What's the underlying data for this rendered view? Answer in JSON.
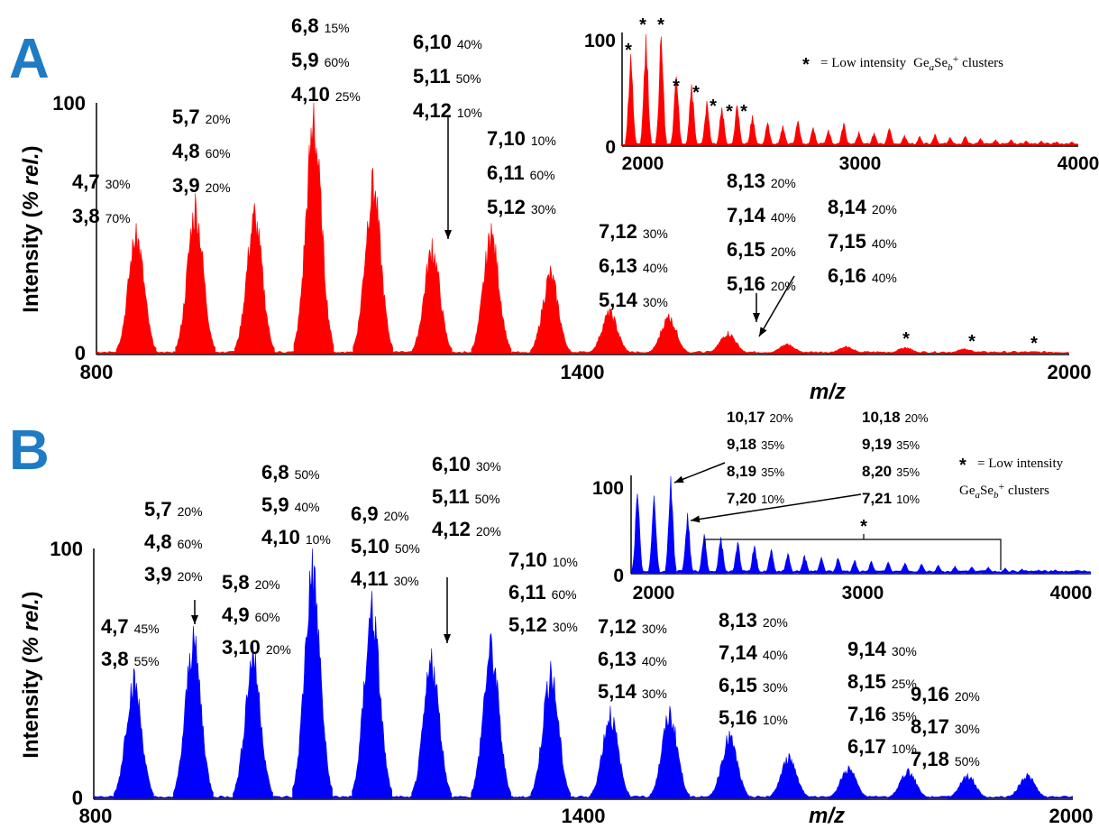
{
  "chart_data": [
    {
      "panel": "A",
      "type": "area",
      "color": "#ff0000",
      "xlabel": "m/z",
      "ylabel_main": "Intensity (",
      "ylabel_italic": "% rel.",
      "ylabel_close": ")",
      "xlim": [
        800,
        2000
      ],
      "ylim": [
        0,
        100
      ],
      "x_ticks": [
        "800",
        "1400",
        "2000"
      ],
      "y_ticks": [
        "0",
        "100"
      ],
      "peaks": [
        {
          "x": 849,
          "y": 52
        },
        {
          "x": 922,
          "y": 64
        },
        {
          "x": 995,
          "y": 60
        },
        {
          "x": 1068,
          "y": 100
        },
        {
          "x": 1141,
          "y": 74
        },
        {
          "x": 1214,
          "y": 46
        },
        {
          "x": 1287,
          "y": 52
        },
        {
          "x": 1360,
          "y": 35
        },
        {
          "x": 1433,
          "y": 18
        },
        {
          "x": 1506,
          "y": 16
        },
        {
          "x": 1579,
          "y": 9
        },
        {
          "x": 1652,
          "y": 4
        },
        {
          "x": 1725,
          "y": 3
        },
        {
          "x": 1798,
          "y": 2.5
        },
        {
          "x": 1871,
          "y": 2
        }
      ],
      "annotations": [
        {
          "lines": [
            [
              "4,7",
              "30%"
            ],
            [
              "3,8",
              "70%"
            ]
          ]
        },
        {
          "lines": [
            [
              "5,7",
              "20%"
            ],
            [
              "4,8",
              "60%"
            ],
            [
              "3,9",
              "20%"
            ]
          ]
        },
        {
          "lines": [
            [
              "6,8",
              "15%"
            ],
            [
              "5,9",
              "60%"
            ],
            [
              "4,10",
              "25%"
            ]
          ]
        },
        {
          "lines": [
            [
              "6,10",
              "40%"
            ],
            [
              "5,11",
              "50%"
            ],
            [
              "4,12",
              "10%"
            ]
          ]
        },
        {
          "lines": [
            [
              "7,10",
              "10%"
            ],
            [
              "6,11",
              "60%"
            ],
            [
              "5,12",
              "30%"
            ]
          ]
        },
        {
          "lines": [
            [
              "7,12",
              "30%"
            ],
            [
              "6,13",
              "40%"
            ],
            [
              "5,14",
              "30%"
            ]
          ]
        },
        {
          "lines": [
            [
              "8,13",
              "20%"
            ],
            [
              "7,14",
              "40%"
            ],
            [
              "6,15",
              "20%"
            ],
            [
              "5,16",
              "20%"
            ]
          ]
        },
        {
          "lines": [
            [
              "8,14",
              "20%"
            ],
            [
              "7,15",
              "40%"
            ],
            [
              "6,16",
              "40%"
            ]
          ]
        }
      ],
      "stars": [
        "*",
        "*",
        "*"
      ],
      "inset": {
        "xlim": [
          1900,
          4000
        ],
        "ylim": [
          0,
          100
        ],
        "x_ticks": [
          "2000",
          "3000",
          "4000"
        ],
        "y_ticks": [
          "0",
          "100"
        ],
        "legend": "= Low intensity",
        "legend_formula": [
          "Ge",
          "a",
          "Se",
          "b",
          "+",
          " clusters"
        ],
        "peaks": [
          {
            "x": 1940,
            "y": 82
          },
          {
            "x": 2010,
            "y": 100
          },
          {
            "x": 2080,
            "y": 98
          },
          {
            "x": 2150,
            "y": 62
          },
          {
            "x": 2220,
            "y": 55
          },
          {
            "x": 2290,
            "y": 40
          },
          {
            "x": 2360,
            "y": 34
          },
          {
            "x": 2430,
            "y": 36
          },
          {
            "x": 2500,
            "y": 27
          },
          {
            "x": 2570,
            "y": 20
          },
          {
            "x": 2640,
            "y": 18
          },
          {
            "x": 2710,
            "y": 22
          },
          {
            "x": 2780,
            "y": 16
          },
          {
            "x": 2850,
            "y": 14
          },
          {
            "x": 2920,
            "y": 20
          },
          {
            "x": 2990,
            "y": 12
          },
          {
            "x": 3060,
            "y": 11
          },
          {
            "x": 3130,
            "y": 15
          },
          {
            "x": 3200,
            "y": 9
          },
          {
            "x": 3270,
            "y": 8
          },
          {
            "x": 3340,
            "y": 10
          },
          {
            "x": 3410,
            "y": 7
          },
          {
            "x": 3480,
            "y": 8
          },
          {
            "x": 3550,
            "y": 6
          },
          {
            "x": 3620,
            "y": 5
          },
          {
            "x": 3690,
            "y": 5
          },
          {
            "x": 3760,
            "y": 4
          },
          {
            "x": 3830,
            "y": 4
          },
          {
            "x": 3900,
            "y": 3
          },
          {
            "x": 3970,
            "y": 3
          }
        ],
        "stars": [
          "*",
          "*",
          "*",
          "*",
          "*",
          "*",
          "*",
          "*",
          "*"
        ]
      }
    },
    {
      "panel": "B",
      "type": "area",
      "color": "#0000ff",
      "xlabel": "m/z",
      "ylabel_main": "Intensity (",
      "ylabel_italic": "% rel.",
      "ylabel_close": ")",
      "xlim": [
        800,
        2000
      ],
      "ylim": [
        0,
        100
      ],
      "x_ticks": [
        "800",
        "1400",
        "2000"
      ],
      "y_ticks": [
        "0",
        "100"
      ],
      "peaks": [
        {
          "x": 849,
          "y": 52
        },
        {
          "x": 922,
          "y": 69
        },
        {
          "x": 995,
          "y": 62
        },
        {
          "x": 1068,
          "y": 100
        },
        {
          "x": 1141,
          "y": 83
        },
        {
          "x": 1214,
          "y": 60
        },
        {
          "x": 1287,
          "y": 66
        },
        {
          "x": 1360,
          "y": 55
        },
        {
          "x": 1433,
          "y": 37
        },
        {
          "x": 1506,
          "y": 37
        },
        {
          "x": 1579,
          "y": 27
        },
        {
          "x": 1652,
          "y": 18
        },
        {
          "x": 1725,
          "y": 13
        },
        {
          "x": 1798,
          "y": 12
        },
        {
          "x": 1871,
          "y": 10
        },
        {
          "x": 1944,
          "y": 10
        }
      ],
      "annotations": [
        {
          "lines": [
            [
              "4,7",
              "45%"
            ],
            [
              "3,8",
              "55%"
            ]
          ]
        },
        {
          "lines": [
            [
              "5,7",
              "20%"
            ],
            [
              "4,8",
              "60%"
            ],
            [
              "3,9",
              "20%"
            ]
          ]
        },
        {
          "lines": [
            [
              "5,8",
              "20%"
            ],
            [
              "4,9",
              "60%"
            ],
            [
              "3,10",
              "20%"
            ]
          ]
        },
        {
          "lines": [
            [
              "6,8",
              "50%"
            ],
            [
              "5,9",
              "40%"
            ],
            [
              "4,10",
              "10%"
            ]
          ]
        },
        {
          "lines": [
            [
              "6,9",
              "20%"
            ],
            [
              "5,10",
              "50%"
            ],
            [
              "4,11",
              "30%"
            ]
          ]
        },
        {
          "lines": [
            [
              "6,10",
              "30%"
            ],
            [
              "5,11",
              "50%"
            ],
            [
              "4,12",
              "20%"
            ]
          ]
        },
        {
          "lines": [
            [
              "7,10",
              "10%"
            ],
            [
              "6,11",
              "60%"
            ],
            [
              "5,12",
              "30%"
            ]
          ]
        },
        {
          "lines": [
            [
              "7,12",
              "30%"
            ],
            [
              "6,13",
              "40%"
            ],
            [
              "5,14",
              "30%"
            ]
          ]
        },
        {
          "lines": [
            [
              "8,13",
              "20%"
            ],
            [
              "7,14",
              "40%"
            ],
            [
              "6,15",
              "30%"
            ],
            [
              "5,16",
              "10%"
            ]
          ]
        },
        {
          "lines": [
            [
              "9,14",
              "30%"
            ],
            [
              "8,15",
              "25%"
            ],
            [
              "7,16",
              "35%"
            ],
            [
              "6,17",
              "10%"
            ]
          ]
        },
        {
          "lines": [
            [
              "9,16",
              "20%"
            ],
            [
              "8,17",
              "30%"
            ],
            [
              "7,18",
              "50%"
            ]
          ]
        }
      ],
      "inset": {
        "xlim": [
          1900,
          4100
        ],
        "ylim": [
          0,
          100
        ],
        "x_ticks": [
          "2000",
          "3000",
          "4000"
        ],
        "y_ticks": [
          "0",
          "100"
        ],
        "legend": "= Low intensity",
        "legend_formula": [
          "Ge",
          "a",
          "Se",
          "b",
          "+",
          " clusters"
        ],
        "peaks": [
          {
            "x": 1930,
            "y": 82
          },
          {
            "x": 2010,
            "y": 80
          },
          {
            "x": 2090,
            "y": 100
          },
          {
            "x": 2170,
            "y": 62
          },
          {
            "x": 2250,
            "y": 40
          },
          {
            "x": 2330,
            "y": 37
          },
          {
            "x": 2410,
            "y": 32
          },
          {
            "x": 2490,
            "y": 28
          },
          {
            "x": 2570,
            "y": 24
          },
          {
            "x": 2650,
            "y": 20
          },
          {
            "x": 2730,
            "y": 18
          },
          {
            "x": 2810,
            "y": 16
          },
          {
            "x": 2890,
            "y": 15
          },
          {
            "x": 2970,
            "y": 13
          },
          {
            "x": 3050,
            "y": 12
          },
          {
            "x": 3130,
            "y": 11
          },
          {
            "x": 3210,
            "y": 10
          },
          {
            "x": 3290,
            "y": 9
          },
          {
            "x": 3370,
            "y": 8
          },
          {
            "x": 3450,
            "y": 7
          },
          {
            "x": 3530,
            "y": 6
          },
          {
            "x": 3610,
            "y": 6
          },
          {
            "x": 3690,
            "y": 5
          },
          {
            "x": 3770,
            "y": 4
          },
          {
            "x": 3850,
            "y": 3
          },
          {
            "x": 3930,
            "y": 3
          },
          {
            "x": 4010,
            "y": 2
          }
        ],
        "annotations": [
          {
            "lines": [
              [
                "10,17",
                "20%"
              ],
              [
                "9,18",
                "35%"
              ],
              [
                "8,19",
                "35%"
              ],
              [
                "7,20",
                "10%"
              ]
            ]
          },
          {
            "lines": [
              [
                "10,18",
                "20%"
              ],
              [
                "9,19",
                "35%"
              ],
              [
                "8,20",
                "35%"
              ],
              [
                "7,21",
                "10%"
              ]
            ]
          }
        ],
        "stars": [
          "*"
        ]
      }
    }
  ]
}
